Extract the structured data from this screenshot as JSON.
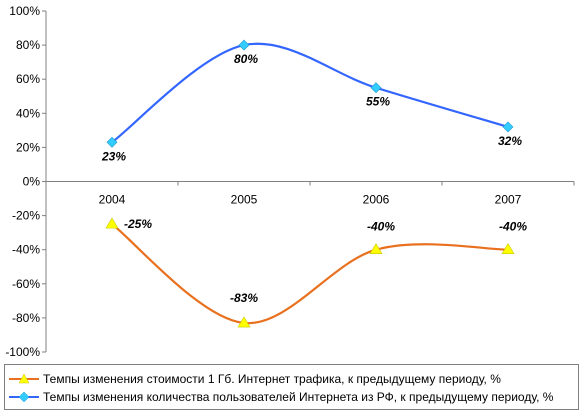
{
  "chart_data": {
    "type": "line",
    "categories": [
      "2004",
      "2005",
      "2006",
      "2007"
    ],
    "ylim": [
      -100,
      100
    ],
    "yticks": [
      "100%",
      "80%",
      "60%",
      "40%",
      "20%",
      "0%",
      "-20%",
      "-40%",
      "-60%",
      "-80%",
      "-100%"
    ],
    "ytick_values": [
      100,
      80,
      60,
      40,
      20,
      0,
      -20,
      -40,
      -60,
      -80,
      -100
    ],
    "grid": false,
    "legend_position": "bottom",
    "series": [
      {
        "name": "Темпы изменения стоимости 1 Гб. Интернет трафика, к предыдущему периоду, %",
        "values": [
          -25,
          -83,
          -40,
          -40
        ],
        "labels": [
          "-25%",
          "-83%",
          "-40%",
          "-40%"
        ],
        "color": "#e8701e",
        "marker_color": "#ffff00",
        "marker": "triangle"
      },
      {
        "name": "Темпы изменения количества пользователей Интернета из РФ, к предыдущему периоду, %",
        "values": [
          23,
          80,
          55,
          32
        ],
        "labels": [
          "23%",
          "80%",
          "55%",
          "32%"
        ],
        "color": "#3366ff",
        "marker_color": "#33ccff",
        "marker": "diamond"
      }
    ]
  }
}
